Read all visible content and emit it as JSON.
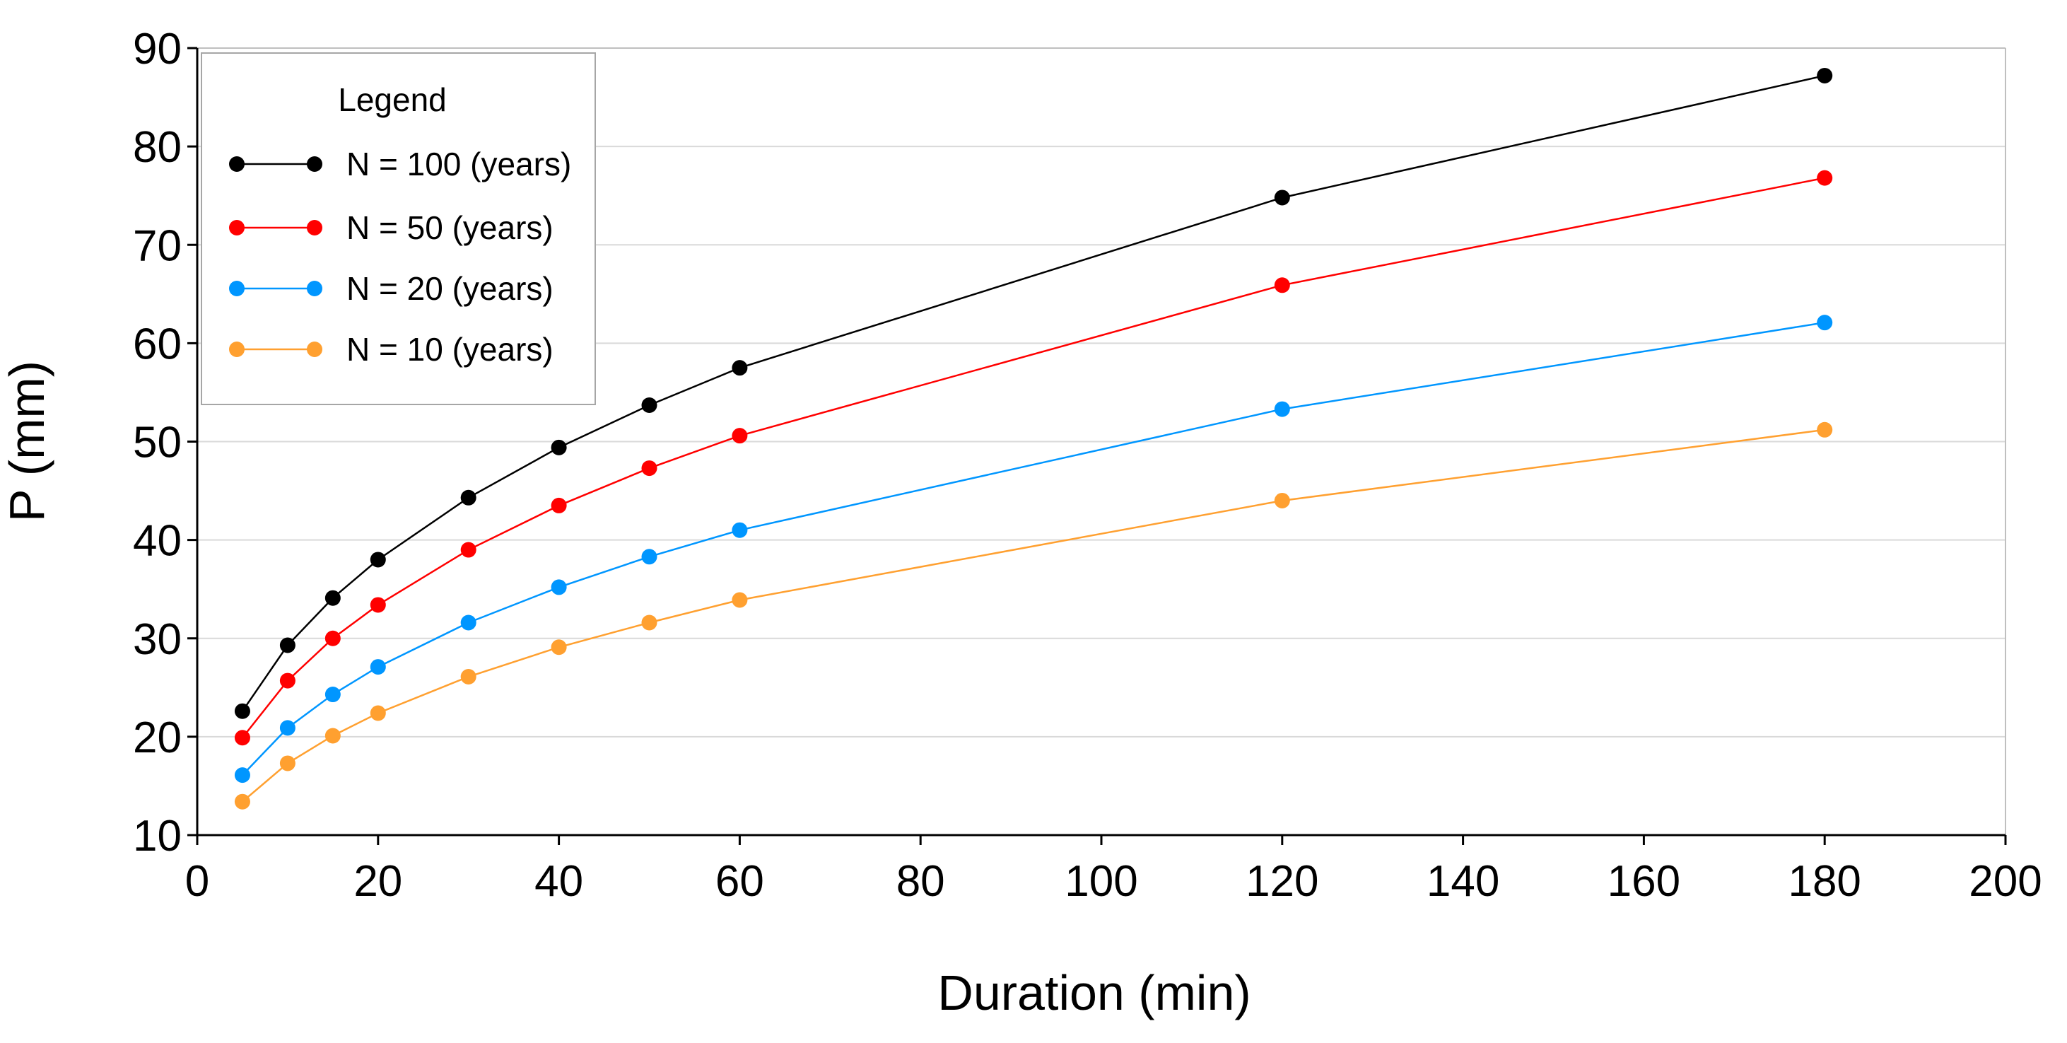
{
  "chart_data": {
    "type": "line",
    "title": "",
    "xlabel": "Duration (min)",
    "ylabel": "P (mm)",
    "xlim": [
      0,
      200
    ],
    "ylim": [
      10,
      90
    ],
    "x_ticks": [
      0,
      20,
      40,
      60,
      80,
      100,
      120,
      140,
      160,
      180,
      200
    ],
    "y_ticks": [
      10,
      20,
      30,
      40,
      50,
      60,
      70,
      80,
      90
    ],
    "grid": "horizontal",
    "legend_title": "Legend",
    "legend_position": "top-left",
    "x": [
      5,
      10,
      15,
      20,
      30,
      40,
      50,
      60,
      120,
      180
    ],
    "series": [
      {
        "name": "N = 100 (years)",
        "color": "#000000",
        "values": [
          22.6,
          29.3,
          34.1,
          38.0,
          44.3,
          49.4,
          53.7,
          57.5,
          74.8,
          87.2
        ]
      },
      {
        "name": "N = 50 (years)",
        "color": "#ff0000",
        "values": [
          19.9,
          25.7,
          30.0,
          33.4,
          39.0,
          43.5,
          47.3,
          50.6,
          65.9,
          76.8
        ]
      },
      {
        "name": "N = 20 (years)",
        "color": "#0096ff",
        "values": [
          16.1,
          20.9,
          24.3,
          27.1,
          31.6,
          35.2,
          38.3,
          41.0,
          53.3,
          62.1
        ]
      },
      {
        "name": "N = 10 (years)",
        "color": "#ffa030",
        "values": [
          13.4,
          17.3,
          20.1,
          22.4,
          26.1,
          29.1,
          31.6,
          33.9,
          44.0,
          51.2
        ]
      }
    ]
  }
}
